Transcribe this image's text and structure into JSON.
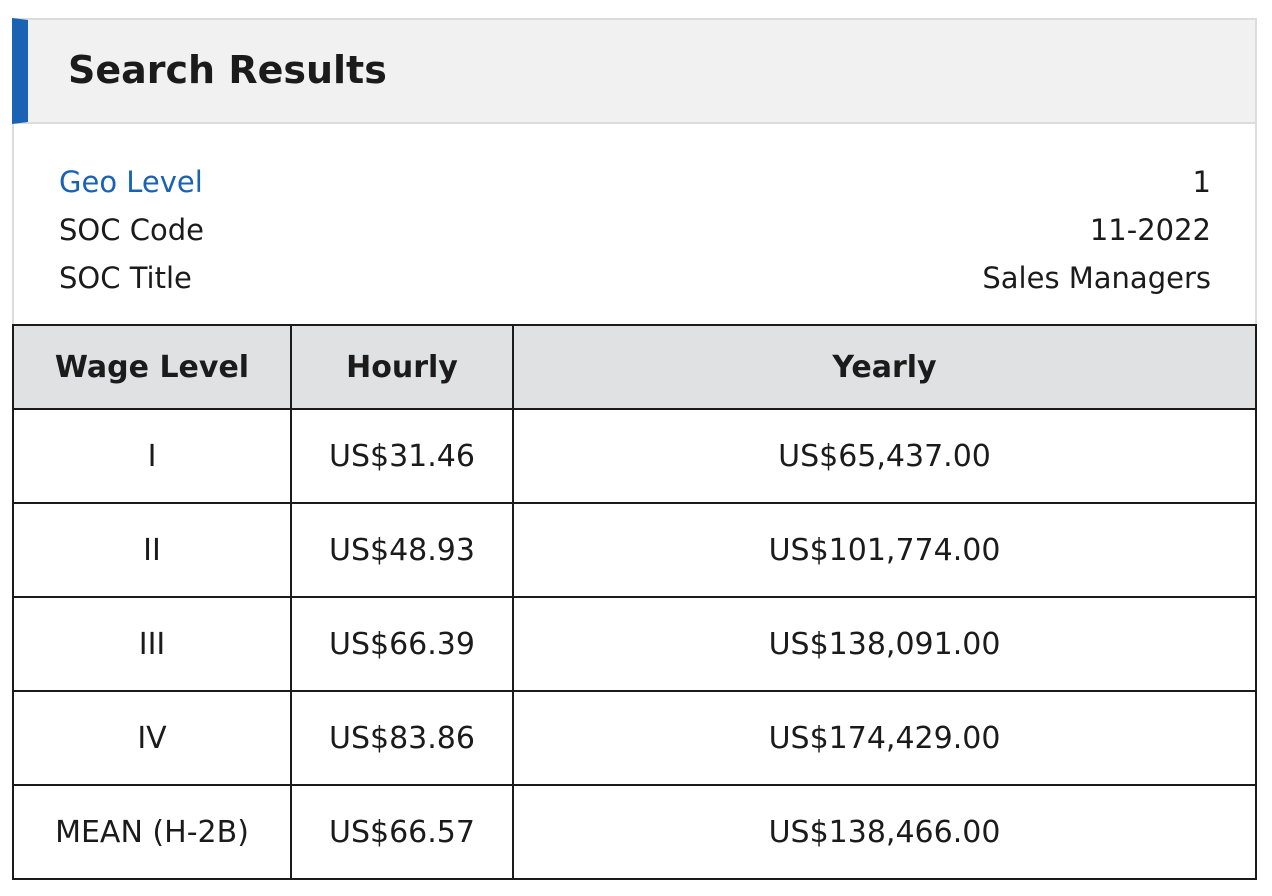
{
  "header": {
    "title": "Search Results"
  },
  "info": [
    {
      "label": "Geo Level",
      "value": "1"
    },
    {
      "label": "SOC Code",
      "value": "11-2022"
    },
    {
      "label": "SOC Title",
      "value": "Sales Managers"
    }
  ],
  "table": {
    "columns": [
      "Wage Level",
      "Hourly",
      "Yearly"
    ],
    "rows": [
      [
        "I",
        "US$31.46",
        "US$65,437.00"
      ],
      [
        "II",
        "US$48.93",
        "US$101,774.00"
      ],
      [
        "III",
        "US$66.39",
        "US$138,091.00"
      ],
      [
        "IV",
        "US$83.86",
        "US$174,429.00"
      ],
      [
        "MEAN (H-2B)",
        "US$66.57",
        "US$138,466.00"
      ]
    ]
  }
}
